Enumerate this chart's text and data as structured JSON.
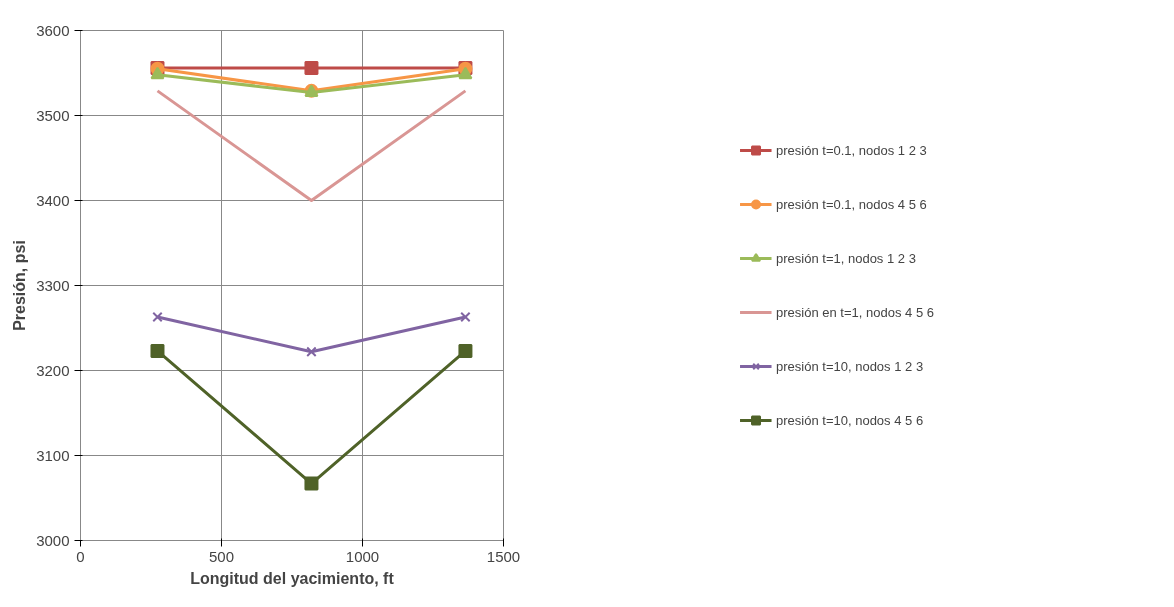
{
  "chart_data": {
    "type": "line",
    "xlabel": "Longitud del yacimiento, ft",
    "ylabel": "Presión, psi",
    "xlim": [
      0,
      1500
    ],
    "xticks": [
      0,
      500,
      1000,
      1500
    ],
    "ylim": [
      3000,
      3600
    ],
    "yticks": [
      3000,
      3100,
      3200,
      3300,
      3400,
      3500,
      3600
    ],
    "grid": true,
    "legend": "right",
    "series": [
      {
        "name": "presión t=0.1, nodos 1 2 3",
        "color": "#be4b48",
        "marker": "square",
        "x": [
          273,
          819,
          1365
        ],
        "values": [
          3556,
          3556,
          3556
        ]
      },
      {
        "name": "presión t=0.1, nodos 4 5 6",
        "color": "#f79646",
        "marker": "circle",
        "x": [
          273,
          819,
          1365
        ],
        "values": [
          3555,
          3529,
          3555
        ]
      },
      {
        "name": "presión t=1, nodos 1 2 3",
        "color": "#9bbb59",
        "marker": "triangle",
        "x": [
          273,
          819,
          1365
        ],
        "values": [
          3548,
          3527,
          3548
        ]
      },
      {
        "name": "presión en t=1, nodos 4 5 6",
        "color": "#d99694",
        "marker": "none",
        "x": [
          273,
          819,
          1365
        ],
        "values": [
          3529,
          3400,
          3529
        ]
      },
      {
        "name": "presión t=10, nodos 1 2 3",
        "color": "#8064a2",
        "marker": "cross",
        "x": [
          273,
          819,
          1365
        ],
        "values": [
          3263,
          3222,
          3263
        ]
      },
      {
        "name": "presión t=10, nodos 4 5 6",
        "color": "#4f6228",
        "marker": "square",
        "x": [
          273,
          819,
          1365
        ],
        "values": [
          3223,
          3067,
          3223
        ]
      }
    ]
  }
}
